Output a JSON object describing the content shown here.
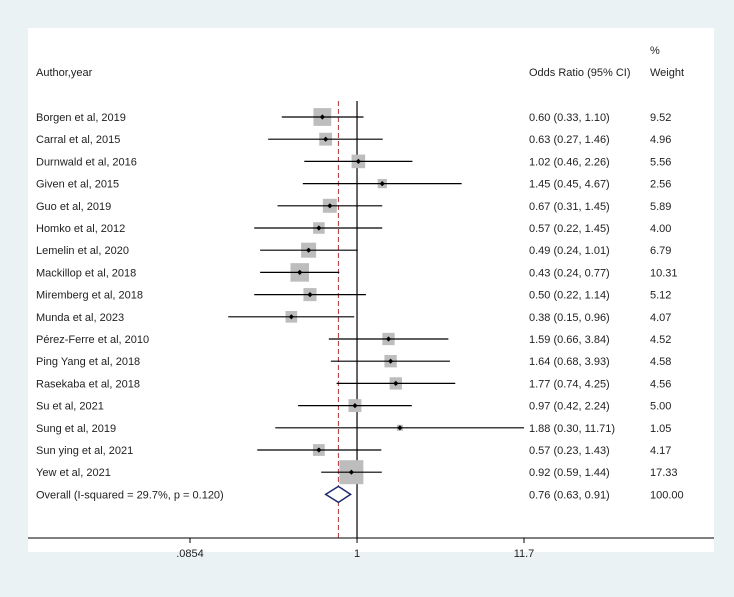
{
  "chart_data": {
    "type": "forest",
    "header": {
      "study_col": "Author,year",
      "or_col": "Odds Ratio (95% CI)",
      "weight_col_line1": "%",
      "weight_col_line2": "Weight"
    },
    "x_scale": "log",
    "xlim": [
      0.0854,
      11.7
    ],
    "xticks": [
      {
        "value": 0.0854,
        "label": ".0854"
      },
      {
        "value": 1,
        "label": "1"
      },
      {
        "value": 11.7,
        "label": "11.7"
      }
    ],
    "null_line": 1,
    "pooled_line": 0.76,
    "studies": [
      {
        "label": "Borgen et al, 2019",
        "or": 0.6,
        "lo": 0.33,
        "hi": 1.1,
        "ci_text": "0.60 (0.33, 1.10)",
        "weight": 9.52,
        "weight_text": "9.52"
      },
      {
        "label": "Carral et al, 2015",
        "or": 0.63,
        "lo": 0.27,
        "hi": 1.46,
        "ci_text": "0.63 (0.27, 1.46)",
        "weight": 4.96,
        "weight_text": "4.96"
      },
      {
        "label": "Durnwald et al, 2016",
        "or": 1.02,
        "lo": 0.46,
        "hi": 2.26,
        "ci_text": "1.02 (0.46, 2.26)",
        "weight": 5.56,
        "weight_text": "5.56"
      },
      {
        "label": "Given et al, 2015",
        "or": 1.45,
        "lo": 0.45,
        "hi": 4.67,
        "ci_text": "1.45 (0.45, 4.67)",
        "weight": 2.56,
        "weight_text": "2.56"
      },
      {
        "label": "Guo et al, 2019",
        "or": 0.67,
        "lo": 0.31,
        "hi": 1.45,
        "ci_text": "0.67 (0.31, 1.45)",
        "weight": 5.89,
        "weight_text": "5.89"
      },
      {
        "label": "Homko et al, 2012",
        "or": 0.57,
        "lo": 0.22,
        "hi": 1.45,
        "ci_text": "0.57 (0.22, 1.45)",
        "weight": 4.0,
        "weight_text": "4.00"
      },
      {
        "label": "Lemelin et al, 2020",
        "or": 0.49,
        "lo": 0.24,
        "hi": 1.01,
        "ci_text": "0.49 (0.24, 1.01)",
        "weight": 6.79,
        "weight_text": "6.79"
      },
      {
        "label": "Mackillop et al, 2018",
        "or": 0.43,
        "lo": 0.24,
        "hi": 0.77,
        "ci_text": "0.43 (0.24, 0.77)",
        "weight": 10.31,
        "weight_text": "10.31"
      },
      {
        "label": "Miremberg et al, 2018",
        "or": 0.5,
        "lo": 0.22,
        "hi": 1.14,
        "ci_text": "0.50 (0.22, 1.14)",
        "weight": 5.12,
        "weight_text": "5.12"
      },
      {
        "label": "Munda et al, 2023",
        "or": 0.38,
        "lo": 0.15,
        "hi": 0.96,
        "ci_text": "0.38 (0.15, 0.96)",
        "weight": 4.07,
        "weight_text": "4.07"
      },
      {
        "label": "Pérez-Ferre et al, 2010",
        "or": 1.59,
        "lo": 0.66,
        "hi": 3.84,
        "ci_text": "1.59 (0.66, 3.84)",
        "weight": 4.52,
        "weight_text": "4.52"
      },
      {
        "label": "Ping Yang et al, 2018",
        "or": 1.64,
        "lo": 0.68,
        "hi": 3.93,
        "ci_text": "1.64 (0.68, 3.93)",
        "weight": 4.58,
        "weight_text": "4.58"
      },
      {
        "label": "Rasekaba et al, 2018",
        "or": 1.77,
        "lo": 0.74,
        "hi": 4.25,
        "ci_text": "1.77 (0.74, 4.25)",
        "weight": 4.56,
        "weight_text": "4.56"
      },
      {
        "label": "Su et al, 2021",
        "or": 0.97,
        "lo": 0.42,
        "hi": 2.24,
        "ci_text": "0.97 (0.42, 2.24)",
        "weight": 5.0,
        "weight_text": "5.00"
      },
      {
        "label": "Sung et al, 2019",
        "or": 1.88,
        "lo": 0.3,
        "hi": 11.71,
        "ci_text": "1.88 (0.30, 11.71)",
        "weight": 1.05,
        "weight_text": "1.05"
      },
      {
        "label": "Sun ying et al, 2021",
        "or": 0.57,
        "lo": 0.23,
        "hi": 1.43,
        "ci_text": "0.57 (0.23, 1.43)",
        "weight": 4.17,
        "weight_text": "4.17"
      },
      {
        "label": "Yew et al, 2021",
        "or": 0.92,
        "lo": 0.59,
        "hi": 1.44,
        "ci_text": "0.92 (0.59, 1.44)",
        "weight": 17.33,
        "weight_text": "17.33"
      }
    ],
    "overall": {
      "label": "Overall  (I-squared = 29.7%, p = 0.120)",
      "or": 0.76,
      "lo": 0.63,
      "hi": 0.91,
      "ci_text": "0.76 (0.63, 0.91)",
      "weight": 100.0,
      "weight_text": "100.00"
    },
    "colors": {
      "outer_background": "#eaf2f3",
      "plot_background": "#ffffff",
      "box": "#bdbdbd",
      "ci_line": "#000000",
      "null_line": "#000000",
      "pooled_line": "#b0363a",
      "diamond": "#1f2a6e"
    }
  }
}
